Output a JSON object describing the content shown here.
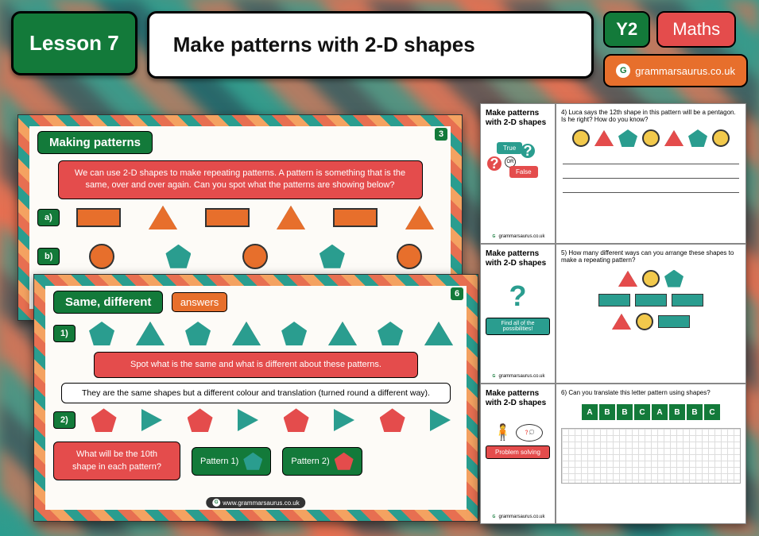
{
  "header": {
    "lesson": "Lesson 7",
    "title": "Make patterns with 2-D shapes",
    "year": "Y2",
    "subject": "Maths",
    "brand": "grammarsaurus.co.uk"
  },
  "colors": {
    "green": "#137a3a",
    "teal": "#2a9d8f",
    "orange": "#e76f2c",
    "red": "#e44c4c",
    "yellow": "#f2c94c",
    "darkorange": "#d35f1c"
  },
  "slide1": {
    "num": "3",
    "title": "Making patterns",
    "intro": "We can use 2-D shapes to make repeating patterns. A pattern is something that is the same, over and over again. Can you spot what the patterns are showing below?",
    "a": "a)",
    "b": "b)"
  },
  "slide2": {
    "num": "6",
    "title": "Same, different",
    "answers": "answers",
    "r1": "1)",
    "r2": "2)",
    "spot": "Spot what is the same and what is different about these patterns.",
    "explain": "They are the same shapes but a different colour and translation (turned round a different way).",
    "question": "What will be the 10th shape in each pattern?",
    "p1": "Pattern 1)",
    "p2": "Pattern 2)",
    "brand": "www.grammarsaurus.co.uk"
  },
  "worksheet": {
    "heading": "Make patterns with 2-D shapes",
    "tf_true": "True",
    "tf_or": "OR",
    "tf_false": "False",
    "q4": "4) Luca says the 12th shape in this pattern will be a pentagon. Is he right? How do you know?",
    "q5": "5) How many different ways can you arrange these shapes to make a repeating pattern?",
    "find": "Find all of the possibilities!",
    "q6": "6) Can you translate this letter pattern using shapes?",
    "letters": [
      "A",
      "B",
      "B",
      "C",
      "A",
      "B",
      "B",
      "C"
    ],
    "ps": "Problem solving",
    "brand": "grammarsaurus.co.uk"
  }
}
